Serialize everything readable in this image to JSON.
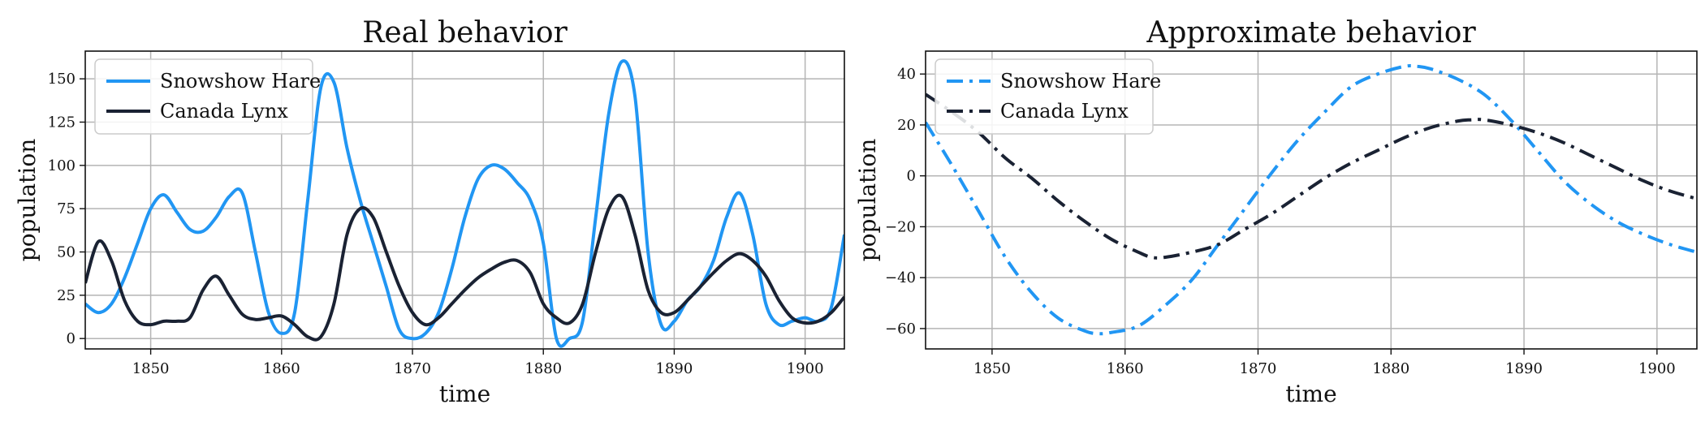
{
  "chart_data": [
    {
      "type": "line",
      "title": "Real behavior",
      "xlabel": "time",
      "ylabel": "population",
      "xlim": [
        1845,
        1903
      ],
      "ylim": [
        -6,
        166
      ],
      "xticks": [
        1850,
        1860,
        1870,
        1880,
        1890,
        1900
      ],
      "yticks": [
        0,
        25,
        50,
        75,
        100,
        125,
        150
      ],
      "grid": true,
      "legend_position": "top-left",
      "series": [
        {
          "name": "Snowshow Hare",
          "color": "#2196f3",
          "dash": "solid",
          "x": [
            1845,
            1846,
            1847,
            1848,
            1849,
            1850,
            1851,
            1852,
            1853,
            1854,
            1855,
            1856,
            1857,
            1858,
            1859,
            1860,
            1861,
            1862,
            1863,
            1864,
            1865,
            1866,
            1867,
            1868,
            1869,
            1870,
            1871,
            1872,
            1873,
            1874,
            1875,
            1876,
            1877,
            1878,
            1879,
            1880,
            1881,
            1882,
            1883,
            1884,
            1885,
            1886,
            1887,
            1888,
            1889,
            1890,
            1891,
            1892,
            1893,
            1894,
            1895,
            1896,
            1897,
            1898,
            1899,
            1900,
            1901,
            1902,
            1903
          ],
          "y": [
            20,
            15,
            20,
            35,
            55,
            75,
            83,
            73,
            63,
            62,
            70,
            82,
            84,
            50,
            15,
            3,
            15,
            80,
            145,
            148,
            110,
            80,
            55,
            30,
            5,
            0,
            3,
            15,
            40,
            70,
            92,
            100,
            98,
            90,
            80,
            55,
            0,
            0,
            10,
            70,
            130,
            160,
            140,
            50,
            8,
            10,
            22,
            30,
            45,
            70,
            84,
            60,
            20,
            8,
            10,
            12,
            10,
            18,
            60
          ]
        },
        {
          "name": "Canada Lynx",
          "color": "#1a2233",
          "dash": "solid",
          "x": [
            1845,
            1846,
            1847,
            1848,
            1849,
            1850,
            1851,
            1852,
            1853,
            1854,
            1855,
            1856,
            1857,
            1858,
            1859,
            1860,
            1861,
            1862,
            1863,
            1864,
            1865,
            1866,
            1867,
            1868,
            1869,
            1870,
            1871,
            1872,
            1873,
            1874,
            1875,
            1876,
            1877,
            1878,
            1879,
            1880,
            1881,
            1882,
            1883,
            1884,
            1885,
            1886,
            1887,
            1888,
            1889,
            1890,
            1891,
            1892,
            1893,
            1894,
            1895,
            1896,
            1897,
            1898,
            1899,
            1900,
            1901,
            1902,
            1903
          ],
          "y": [
            32,
            56,
            45,
            22,
            10,
            8,
            10,
            10,
            12,
            28,
            36,
            25,
            14,
            11,
            12,
            13,
            8,
            1,
            1,
            20,
            60,
            75,
            70,
            50,
            30,
            15,
            8,
            12,
            20,
            28,
            35,
            40,
            44,
            45,
            38,
            20,
            12,
            9,
            20,
            50,
            75,
            82,
            60,
            28,
            15,
            15,
            22,
            30,
            38,
            45,
            49,
            45,
            36,
            22,
            12,
            9,
            10,
            15,
            24
          ]
        }
      ]
    },
    {
      "type": "line",
      "title": "Approximate behavior",
      "xlabel": "time",
      "ylabel": "population",
      "xlim": [
        1845,
        1903
      ],
      "ylim": [
        -68,
        49
      ],
      "xticks": [
        1850,
        1860,
        1870,
        1880,
        1890,
        1900
      ],
      "yticks": [
        -60,
        -40,
        -20,
        0,
        20,
        40
      ],
      "grid": true,
      "legend_position": "top-left",
      "series": [
        {
          "name": "Snowshow Hare",
          "color": "#2196f3",
          "dash": "dashdot",
          "x": [
            1845,
            1847,
            1849,
            1851,
            1853,
            1855,
            1857,
            1858,
            1859,
            1861,
            1863,
            1865,
            1867,
            1869,
            1871,
            1873,
            1875,
            1877,
            1879,
            1881,
            1882,
            1883,
            1885,
            1887,
            1889,
            1891,
            1893,
            1895,
            1897,
            1899,
            1901,
            1903
          ],
          "y": [
            21,
            4,
            -14,
            -32,
            -46,
            -56,
            -61,
            -62,
            -61.5,
            -59,
            -51,
            -41,
            -27,
            -13,
            1,
            14,
            25,
            35,
            40,
            43,
            43,
            42,
            38,
            32,
            22,
            10,
            -2,
            -11,
            -18,
            -23,
            -27,
            -30
          ]
        },
        {
          "name": "Canada Lynx",
          "color": "#1a2233",
          "dash": "dashdot",
          "x": [
            1845,
            1847,
            1849,
            1851,
            1853,
            1855,
            1857,
            1859,
            1861,
            1862,
            1863,
            1865,
            1867,
            1869,
            1871,
            1873,
            1875,
            1877,
            1879,
            1881,
            1883,
            1885,
            1886,
            1887,
            1889,
            1891,
            1893,
            1895,
            1897,
            1899,
            1901,
            1903
          ],
          "y": [
            32,
            25,
            17,
            7,
            -1,
            -10,
            -18,
            -25,
            -30,
            -32,
            -32,
            -30,
            -27,
            -21,
            -15,
            -8,
            -1,
            5,
            10,
            15,
            19,
            21.5,
            22,
            22,
            20,
            17,
            13,
            8,
            3,
            -2,
            -6,
            -9
          ]
        }
      ]
    }
  ]
}
